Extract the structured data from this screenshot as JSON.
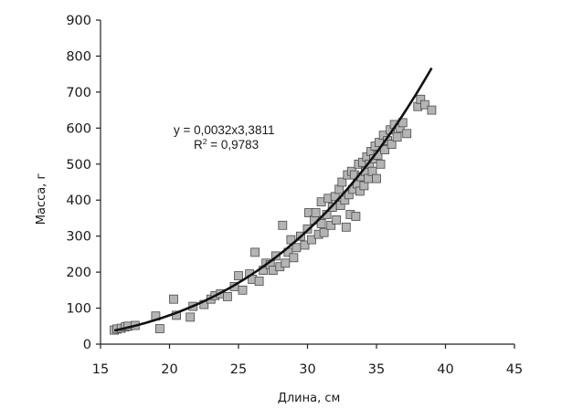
{
  "chart_data": {
    "type": "scatter",
    "title": "",
    "xlabel": "Длина, см",
    "ylabel": "Масса, г",
    "xlim": [
      15,
      45
    ],
    "ylim": [
      0,
      900
    ],
    "x_ticks": [
      "15",
      "20",
      "25",
      "30",
      "35",
      "40",
      "45"
    ],
    "y_ticks": [
      "0",
      "100",
      "200",
      "300",
      "400",
      "500",
      "600",
      "700",
      "800",
      "900"
    ],
    "grid": false,
    "legend": "none",
    "marker_color": "#b4b4b4",
    "marker_edge": "#4a4a4a",
    "trend_color": "#111111",
    "trendline": {
      "type": "power",
      "coefficient": 0.0032,
      "exponent": 3.3811,
      "x_range": [
        16,
        39
      ],
      "equation_label": "y = 0,0032x3,3811",
      "r2_prefix": "R",
      "r2_sup": "2",
      "r2_value": " = 0,9783"
    },
    "points": [
      [
        16.0,
        39
      ],
      [
        16.2,
        42
      ],
      [
        16.5,
        44
      ],
      [
        16.8,
        48
      ],
      [
        17.0,
        50
      ],
      [
        17.5,
        52
      ],
      [
        19.0,
        78
      ],
      [
        19.3,
        43
      ],
      [
        20.3,
        125
      ],
      [
        20.5,
        80
      ],
      [
        21.5,
        75
      ],
      [
        21.7,
        105
      ],
      [
        22.5,
        110
      ],
      [
        23.0,
        125
      ],
      [
        23.3,
        135
      ],
      [
        23.7,
        140
      ],
      [
        24.2,
        132
      ],
      [
        24.7,
        160
      ],
      [
        25.0,
        190
      ],
      [
        25.3,
        150
      ],
      [
        25.8,
        195
      ],
      [
        26.0,
        180
      ],
      [
        26.2,
        255
      ],
      [
        26.5,
        175
      ],
      [
        26.8,
        205
      ],
      [
        27.0,
        225
      ],
      [
        27.3,
        220
      ],
      [
        27.5,
        205
      ],
      [
        27.7,
        245
      ],
      [
        28.0,
        215
      ],
      [
        28.2,
        330
      ],
      [
        28.4,
        225
      ],
      [
        28.6,
        255
      ],
      [
        28.8,
        290
      ],
      [
        29.0,
        240
      ],
      [
        29.2,
        268
      ],
      [
        29.5,
        300
      ],
      [
        29.8,
        275
      ],
      [
        30.0,
        320
      ],
      [
        30.1,
        365
      ],
      [
        30.3,
        290
      ],
      [
        30.5,
        345
      ],
      [
        30.6,
        365
      ],
      [
        30.8,
        305
      ],
      [
        31.0,
        335
      ],
      [
        31.0,
        395
      ],
      [
        31.2,
        310
      ],
      [
        31.4,
        360
      ],
      [
        31.5,
        405
      ],
      [
        31.7,
        330
      ],
      [
        31.8,
        380
      ],
      [
        32.0,
        410
      ],
      [
        32.1,
        345
      ],
      [
        32.3,
        430
      ],
      [
        32.4,
        385
      ],
      [
        32.5,
        450
      ],
      [
        32.7,
        400
      ],
      [
        32.8,
        325
      ],
      [
        32.9,
        470
      ],
      [
        33.0,
        415
      ],
      [
        33.1,
        360
      ],
      [
        33.2,
        480
      ],
      [
        33.3,
        430
      ],
      [
        33.4,
        470
      ],
      [
        33.5,
        355
      ],
      [
        33.6,
        445
      ],
      [
        33.7,
        500
      ],
      [
        33.8,
        425
      ],
      [
        33.9,
        465
      ],
      [
        34.0,
        505
      ],
      [
        34.1,
        440
      ],
      [
        34.2,
        480
      ],
      [
        34.3,
        520
      ],
      [
        34.4,
        460
      ],
      [
        34.5,
        500
      ],
      [
        34.6,
        535
      ],
      [
        34.7,
        480
      ],
      [
        34.8,
        515
      ],
      [
        34.9,
        550
      ],
      [
        35.0,
        460
      ],
      [
        35.1,
        525
      ],
      [
        35.2,
        560
      ],
      [
        35.3,
        500
      ],
      [
        35.5,
        580
      ],
      [
        35.6,
        540
      ],
      [
        35.8,
        565
      ],
      [
        36.0,
        595
      ],
      [
        36.1,
        555
      ],
      [
        36.3,
        610
      ],
      [
        36.5,
        575
      ],
      [
        36.7,
        600
      ],
      [
        36.9,
        615
      ],
      [
        37.2,
        585
      ],
      [
        38.0,
        660
      ],
      [
        38.2,
        680
      ],
      [
        38.5,
        665
      ],
      [
        39.0,
        650
      ]
    ]
  }
}
